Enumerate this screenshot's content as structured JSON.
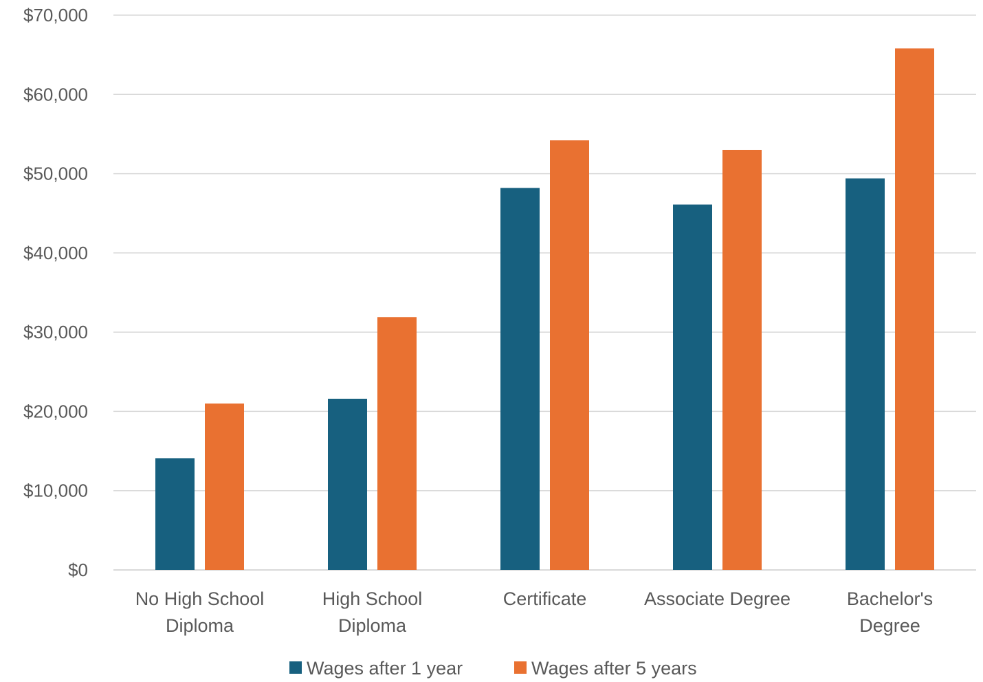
{
  "chart_data": {
    "type": "bar",
    "title": "",
    "xlabel": "",
    "ylabel": "",
    "ylim": [
      0,
      70000
    ],
    "yticks": [
      0,
      10000,
      20000,
      30000,
      40000,
      50000,
      60000,
      70000
    ],
    "ytick_labels": [
      "$0",
      "$10,000",
      "$20,000",
      "$30,000",
      "$40,000",
      "$50,000",
      "$60,000",
      "$70,000"
    ],
    "categories": [
      [
        "No High School",
        "Diploma"
      ],
      [
        "High School",
        "Diploma"
      ],
      [
        "Certificate"
      ],
      [
        "Associate Degree"
      ],
      [
        "Bachelor's",
        "Degree"
      ]
    ],
    "series": [
      {
        "name": "Wages after 1 year",
        "color": "#17607f",
        "values": [
          14100,
          21600,
          48200,
          46100,
          49400
        ]
      },
      {
        "name": "Wages after 5 years",
        "color": "#e97131",
        "values": [
          21000,
          31900,
          54200,
          53000,
          65800
        ]
      }
    ],
    "grid": true,
    "legend_position": "bottom"
  }
}
